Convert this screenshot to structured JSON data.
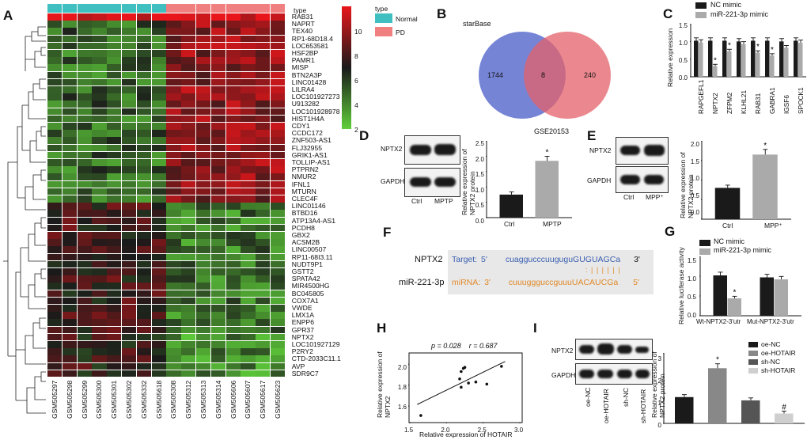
{
  "panels": {
    "A": {
      "letter": "A",
      "legend": {
        "scale_ticks": [
          "10",
          "8",
          "6",
          "4",
          "2"
        ],
        "type_title": "type",
        "type_items": [
          {
            "label": "Normal",
            "color": "#3fbfbf"
          },
          {
            "label": "PD",
            "color": "#f08080"
          }
        ],
        "colors": {
          "high": "#e8161b",
          "mid": "#1a1a1a",
          "low": "#5fcf3a"
        }
      },
      "type_label": "type",
      "genes": [
        "RAB31",
        "NAPRT",
        "TEX40",
        "RP1-68D18.4",
        "LOC653581",
        "HSF2BP",
        "PAMR1",
        "MISP",
        "BTN2A3P",
        "LINC01428",
        "LILRA4",
        "LOC101927273",
        "U913282",
        "LOC101928978",
        "HIST1H4A",
        "CDY1",
        "CCDC172",
        "ZNF503-AS1",
        "FLJ32955",
        "GRIK1-AS1",
        "TOLLIP-AS1",
        "PTPRN2",
        "NMUR2",
        "IFNL1",
        "MTURN",
        "CLEC4F",
        "LINC01146",
        "BTBD16",
        "ATP13A4-AS1",
        "PCDH8",
        "GBX2",
        "ACSM2B",
        "LINC00507",
        "RP11-68I3.11",
        "NUDT9P1",
        "GSTT2",
        "SPATA42",
        "MIR4500HG",
        "BC045805",
        "COX7A1",
        "VWDE",
        "LMX1A",
        "ENPP6",
        "GPR37",
        "NPTX2",
        "LOC101927129",
        "P2RY2",
        "CTD-2033C11.1",
        "AVP",
        "SDR9C7"
      ],
      "samples": [
        "GSM505297",
        "GSM505298",
        "GSM505299",
        "GSM505300",
        "GSM505301",
        "GSM505302",
        "GSM505332",
        "GSM505618",
        "GSM505308",
        "GSM505312",
        "GSM505313",
        "GSM505314",
        "GSM505606",
        "GSM505607",
        "GSM505617",
        "GSM505623"
      ],
      "sample_groups": [
        "Normal",
        "Normal",
        "Normal",
        "Normal",
        "Normal",
        "Normal",
        "Normal",
        "Normal",
        "PD",
        "PD",
        "PD",
        "PD",
        "PD",
        "PD",
        "PD",
        "PD"
      ]
    },
    "B": {
      "letter": "B",
      "left_label": "starBase",
      "right_label": "GSE20153",
      "left_only": "1744",
      "overlap": "8",
      "right_only": "240"
    },
    "C": {
      "letter": "C",
      "legend": [
        "NC mimic",
        "miR-221-3p mimic"
      ],
      "ylabel": "Relative expression",
      "ticks": [
        "1.5",
        "1.0",
        "0.5",
        "0.0"
      ],
      "genes": [
        "RAPGEFL1",
        "NPTX2",
        "ZFPM2",
        "KLHL21",
        "RAB31",
        "GABRA1",
        "IGSF6",
        "SPOCK1"
      ],
      "star": "*"
    },
    "D": {
      "letter": "D",
      "blot_labels": [
        "NPTX2",
        "GAPDH"
      ],
      "lanes": [
        "Ctrl",
        "MPTP"
      ],
      "ylabel": "Relative expression of NPTX2 protein",
      "ticks": [
        "2.5",
        "2.0",
        "1.5",
        "1.0",
        "0.5",
        "0.0"
      ],
      "categories": [
        "Ctrl",
        "MPTP"
      ],
      "star": "*"
    },
    "E": {
      "letter": "E",
      "blot_labels": [
        "NPTX2",
        "GAPDH"
      ],
      "lanes": [
        "Ctrl",
        "MPP⁺"
      ],
      "ylabel": "Relative expression of NPTX2 protein",
      "ticks": [
        "2.0",
        "1.5",
        "1.0",
        "0.5",
        "0.0"
      ],
      "categories": [
        "Ctrl",
        "MPP⁺"
      ],
      "star": "*"
    },
    "F": {
      "letter": "F",
      "gene": "NPTX2",
      "mirna": "miR-221-3p",
      "target_label": "Target:",
      "target_5": "5'",
      "target_3": "3'",
      "target_seq": "cuaggucccuuguguGUGUAGCa",
      "mirna_label": "miRNA:",
      "mirna_3": "3'",
      "mirna_5": "5'",
      "mirna_seq": "cuuuggguccguuuUACAUCGa",
      "pairing": ": | | | | | |"
    },
    "G": {
      "letter": "G",
      "legend": [
        "NC mimic",
        "miR-221-3p mimic"
      ],
      "ylabel": "Relative luciferase activity",
      "ticks": [
        "1.5",
        "1.0",
        "0.5",
        "0.0"
      ],
      "categories": [
        "Wt-NPTX2-3'utr",
        "Mut-NPTX2-3'utr"
      ],
      "star": "*"
    },
    "H": {
      "letter": "H",
      "stats": "p = 0.028    r = 0.687",
      "ylabel": "Relative expression of NPTX2",
      "xlabel": "Relative expression of HOTAIR",
      "yticks": [
        "2.0",
        "1.8",
        "1.6"
      ],
      "xticks": [
        "1.5",
        "2.0",
        "2.5",
        "3.0"
      ]
    },
    "I": {
      "letter": "I",
      "blot_labels": [
        "NPTX2",
        "GAPDH"
      ],
      "lanes": [
        "oe-NC",
        "oe-HOTAIR",
        "sh-NC",
        "sh-HOTAIR"
      ],
      "legend": [
        {
          "label": "oe-NC",
          "color": "#1a1a1a"
        },
        {
          "label": "oe-HOTAIR",
          "color": "#888888"
        },
        {
          "label": "sh-NC",
          "color": "#555555"
        },
        {
          "label": "sh-HOTAIR",
          "color": "#cfcfcf"
        }
      ],
      "ylabel": "Relative expression of NPTX2 protein",
      "ticks": [
        "3",
        "2",
        "1",
        "0"
      ],
      "star": "*",
      "hash": "#"
    }
  },
  "chart_data": [
    {
      "type": "bar",
      "panel": "C",
      "categories": [
        "RAPGEFL1",
        "NPTX2",
        "ZFPM2",
        "KLHL21",
        "RAB31",
        "GABRA1",
        "IGSF6",
        "SPOCK1"
      ],
      "series": [
        {
          "name": "NC mimic",
          "values": [
            1.02,
            1.02,
            1.02,
            1.0,
            1.02,
            1.02,
            1.0,
            1.02
          ],
          "color": "#1a1a1a"
        },
        {
          "name": "miR-221-3p mimic",
          "values": [
            0.97,
            0.3,
            0.72,
            0.92,
            0.68,
            0.6,
            0.82,
            0.96
          ],
          "color": "#aaaaaa"
        }
      ],
      "ylabel": "Relative expression",
      "ylim": [
        0,
        1.5
      ]
    },
    {
      "type": "bar",
      "panel": "D",
      "categories": [
        "Ctrl",
        "MPTP"
      ],
      "values": [
        0.75,
        1.85
      ],
      "colors": [
        "#1a1a1a",
        "#aaaaaa"
      ],
      "ylabel": "Relative expression of NPTX2 protein",
      "ylim": [
        0,
        2.5
      ]
    },
    {
      "type": "bar",
      "panel": "E",
      "categories": [
        "Ctrl",
        "MPP⁺"
      ],
      "values": [
        0.8,
        1.65
      ],
      "colors": [
        "#1a1a1a",
        "#aaaaaa"
      ],
      "ylabel": "Relative expression of NPTX2 protein",
      "ylim": [
        0,
        2.0
      ]
    },
    {
      "type": "bar",
      "panel": "G",
      "categories": [
        "Wt-NPTX2-3'utr",
        "Mut-NPTX2-3'utr"
      ],
      "series": [
        {
          "name": "NC mimic",
          "values": [
            1.02,
            0.97
          ],
          "color": "#1a1a1a"
        },
        {
          "name": "miR-221-3p mimic",
          "values": [
            0.44,
            0.92
          ],
          "color": "#aaaaaa"
        }
      ],
      "ylabel": "Relative luciferase activity",
      "ylim": [
        0,
        1.5
      ]
    },
    {
      "type": "scatter",
      "panel": "H",
      "x": [
        1.65,
        2.18,
        2.2,
        2.23,
        2.25,
        2.2,
        2.3,
        2.4,
        2.55,
        2.75
      ],
      "y": [
        1.51,
        1.86,
        1.93,
        1.96,
        1.97,
        1.78,
        1.82,
        1.83,
        1.81,
        1.98
      ],
      "xlabel": "Relative expression of HOTAIR",
      "ylabel": "Relative expression of NPTX2",
      "xlim": [
        1.5,
        3.0
      ],
      "ylim": [
        1.45,
        2.1
      ]
    },
    {
      "type": "bar",
      "panel": "I",
      "categories": [
        "oe-NC",
        "oe-HOTAIR",
        "sh-NC",
        "sh-HOTAIR"
      ],
      "values": [
        1.12,
        2.35,
        0.98,
        0.42
      ],
      "colors": [
        "#1a1a1a",
        "#888888",
        "#555555",
        "#cfcfcf"
      ],
      "ylabel": "Relative expression of NPTX2 protein",
      "ylim": [
        0,
        3
      ]
    }
  ]
}
